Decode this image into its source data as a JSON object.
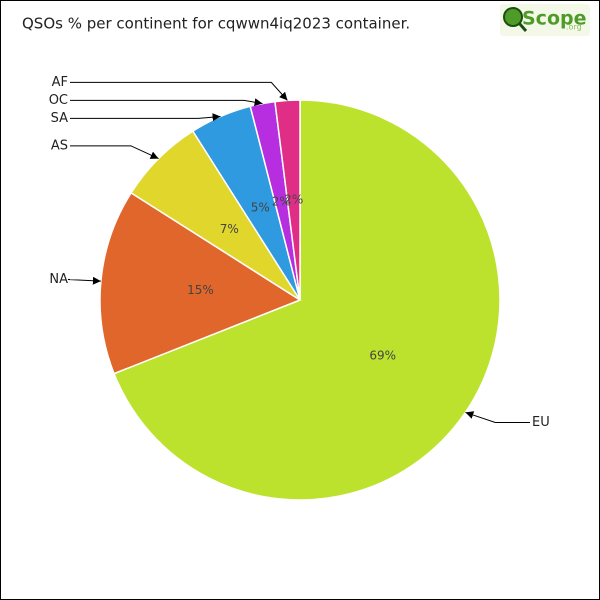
{
  "chart_data": {
    "type": "pie",
    "title": "QSOs % per continent for cqwwn4iq2023 container.",
    "categories": [
      "EU",
      "NA",
      "AS",
      "SA",
      "OC",
      "AF"
    ],
    "values": [
      69,
      15,
      7,
      5,
      2,
      2
    ],
    "value_labels": [
      "69%",
      "15%",
      "7%",
      "5%",
      "2%",
      "2%"
    ],
    "colors": [
      "#bce22e",
      "#e0662c",
      "#e0d62c",
      "#2f9ae0",
      "#b72ee0",
      "#e02e86"
    ]
  },
  "logo": {
    "text": "Scope",
    "suffix": ".org"
  }
}
